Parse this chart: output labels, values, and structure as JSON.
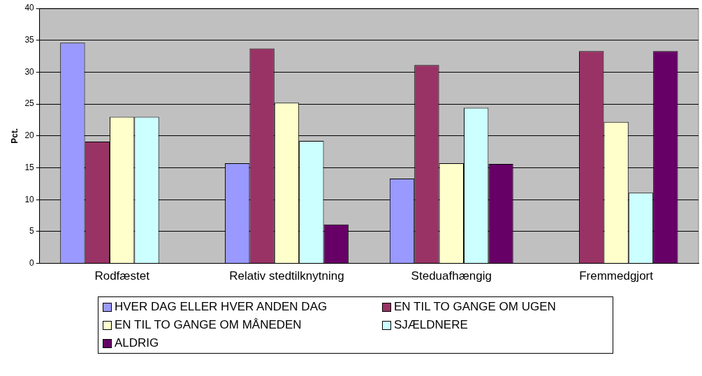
{
  "chart_data": {
    "type": "bar",
    "ylabel": "Pct.",
    "categories": [
      "Rodfæstet",
      "Relativ stedtilknytning",
      "Steduafhængig",
      "Fremmedgjort"
    ],
    "series": [
      {
        "name": "HVER DAG ELLER HVER ANDEN DAG",
        "color": "#9999ff",
        "values": [
          34.6,
          15.7,
          13.3,
          0
        ]
      },
      {
        "name": "EN TIL TO GANGE OM UGEN",
        "color": "#993366",
        "values": [
          19.1,
          33.7,
          31.1,
          33.3
        ]
      },
      {
        "name": "EN TIL TO GANGE OM MÅNEDEN",
        "color": "#ffffcc",
        "values": [
          23.0,
          25.2,
          15.7,
          22.2
        ]
      },
      {
        "name": "SJÆLDNERE",
        "color": "#ccffff",
        "values": [
          23.0,
          19.2,
          24.4,
          11.1
        ]
      },
      {
        "name": "ALDRIG",
        "color": "#660066",
        "values": [
          0,
          6.1,
          15.6,
          33.3
        ]
      }
    ],
    "ylim": [
      0,
      40
    ],
    "yticks": [
      0,
      5,
      10,
      15,
      20,
      25,
      30,
      35,
      40
    ],
    "grid": "y",
    "legend": "bottom"
  }
}
